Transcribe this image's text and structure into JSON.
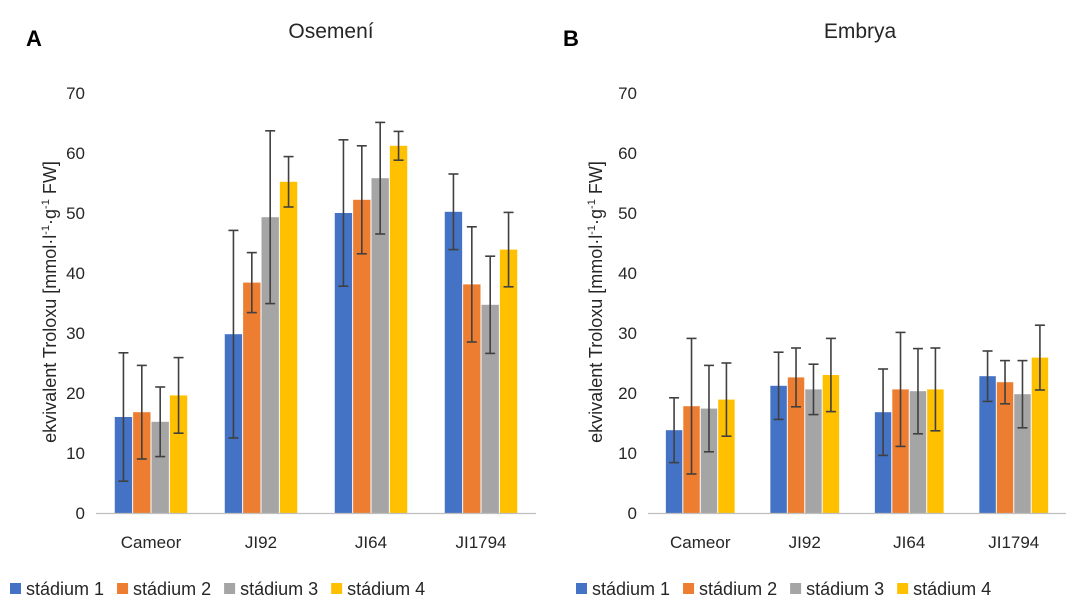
{
  "colors": {
    "series": [
      "#4472C4",
      "#ED7D31",
      "#A5A5A5",
      "#FFC000"
    ],
    "axis": "#BFBFBF",
    "error_bar": "#404040"
  },
  "ylabel": {
    "main": "ekvivalent Troloxu [mmol·l",
    "sup1": "-1",
    "mid": "·g",
    "sup2": "-1",
    "end": " FW]"
  },
  "chart_data": [
    {
      "type": "bar",
      "panel_label": "A",
      "title": "Osemení",
      "categories": [
        "Cameor",
        "JI92",
        "JI64",
        "JI1794"
      ],
      "ylim": [
        0,
        70
      ],
      "yticks": [
        "0",
        "10",
        "20",
        "30",
        "40",
        "50",
        "60",
        "70"
      ],
      "grid": false,
      "legend_position": "bottom",
      "series": [
        {
          "name": "stádium 1",
          "values": [
            16.0,
            29.8,
            50.0,
            50.2
          ],
          "errors": [
            10.7,
            17.3,
            12.2,
            6.3
          ]
        },
        {
          "name": "stádium 2",
          "values": [
            16.8,
            38.4,
            52.2,
            38.1
          ],
          "errors": [
            7.8,
            5.0,
            9.0,
            9.6
          ]
        },
        {
          "name": "stádium 3",
          "values": [
            15.2,
            49.3,
            55.8,
            34.7
          ],
          "errors": [
            5.8,
            14.4,
            9.3,
            8.1
          ]
        },
        {
          "name": "stádium 4",
          "values": [
            19.6,
            55.2,
            61.2,
            43.9
          ],
          "errors": [
            6.3,
            4.2,
            2.4,
            6.2
          ]
        }
      ]
    },
    {
      "type": "bar",
      "panel_label": "B",
      "title": "Embrya",
      "categories": [
        "Cameor",
        "JI92",
        "JI64",
        "JI1794"
      ],
      "ylim": [
        0,
        70
      ],
      "yticks": [
        "0",
        "10",
        "20",
        "30",
        "40",
        "50",
        "60",
        "70"
      ],
      "grid": false,
      "legend_position": "bottom",
      "series": [
        {
          "name": "stádium 1",
          "values": [
            13.8,
            21.2,
            16.8,
            22.8
          ],
          "errors": [
            5.4,
            5.6,
            7.2,
            4.2
          ]
        },
        {
          "name": "stádium 2",
          "values": [
            17.8,
            22.6,
            20.6,
            21.8
          ],
          "errors": [
            11.3,
            4.9,
            9.5,
            3.6
          ]
        },
        {
          "name": "stádium 3",
          "values": [
            17.4,
            20.6,
            20.3,
            19.8
          ],
          "errors": [
            7.2,
            4.2,
            7.1,
            5.6
          ]
        },
        {
          "name": "stádium 4",
          "values": [
            18.9,
            23.0,
            20.6,
            25.9
          ],
          "errors": [
            6.1,
            6.1,
            6.9,
            5.4
          ]
        }
      ]
    }
  ]
}
